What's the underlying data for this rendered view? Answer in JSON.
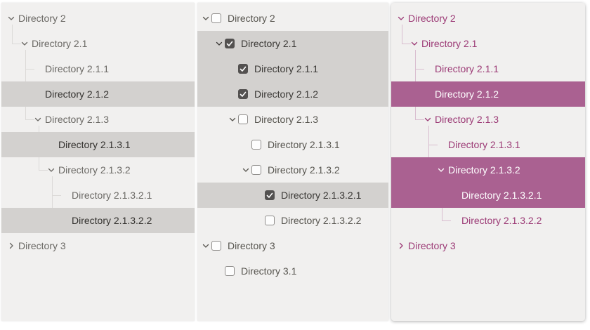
{
  "page": {
    "background": "#ffffff"
  },
  "panels": [
    {
      "name": "tree-basic",
      "show_lines": true,
      "show_checkboxes": false,
      "theme": {
        "panel_bg": "#f1f0ef",
        "text": "#6b6965",
        "selected_text": "#33312e",
        "selected_bg": "#d3d1cf",
        "line": "#dcdad8"
      },
      "nodes": [
        {
          "label": "Directory 2",
          "level": 0,
          "chevron": "down",
          "selected": false
        },
        {
          "label": "Directory 2.1",
          "level": 1,
          "chevron": "down",
          "selected": false
        },
        {
          "label": "Directory 2.1.1",
          "level": 2,
          "chevron": "none",
          "selected": false
        },
        {
          "label": "Directory 2.1.2",
          "level": 2,
          "chevron": "none",
          "selected": true
        },
        {
          "label": "Directory 2.1.3",
          "level": 2,
          "chevron": "down",
          "selected": false
        },
        {
          "label": "Directory 2.1.3.1",
          "level": 3,
          "chevron": "none",
          "selected": true
        },
        {
          "label": "Directory 2.1.3.2",
          "level": 3,
          "chevron": "down",
          "selected": false
        },
        {
          "label": "Directory 2.1.3.2.1",
          "level": 4,
          "chevron": "none",
          "selected": false
        },
        {
          "label": "Directory 2.1.3.2.2",
          "level": 4,
          "chevron": "none",
          "selected": true
        },
        {
          "label": "Directory 3",
          "level": 0,
          "chevron": "right",
          "selected": false
        }
      ]
    },
    {
      "name": "tree-checkbox",
      "show_lines": false,
      "show_checkboxes": true,
      "theme": {
        "panel_bg": "#f1f0ef",
        "text": "#57554f",
        "selected_text": "#3a3835",
        "selected_bg": "#d3d1cf",
        "line": "#dcdad8",
        "checkbox_border": "#8f8d8b",
        "checkbox_checked_bg": "#535150",
        "checkbox_check": "#ffffff"
      },
      "nodes": [
        {
          "label": "Directory 2",
          "level": 0,
          "chevron": "down",
          "selected": false,
          "checked": false
        },
        {
          "label": "Directory 2.1",
          "level": 1,
          "chevron": "down",
          "selected": true,
          "checked": true
        },
        {
          "label": "Directory 2.1.1",
          "level": 2,
          "chevron": "none",
          "selected": true,
          "checked": true
        },
        {
          "label": "Directory 2.1.2",
          "level": 2,
          "chevron": "none",
          "selected": true,
          "checked": true
        },
        {
          "label": "Directory 2.1.3",
          "level": 2,
          "chevron": "down",
          "selected": false,
          "checked": false
        },
        {
          "label": "Directory 2.1.3.1",
          "level": 3,
          "chevron": "none",
          "selected": false,
          "checked": false
        },
        {
          "label": "Directory 2.1.3.2",
          "level": 3,
          "chevron": "down",
          "selected": false,
          "checked": false
        },
        {
          "label": "Directory 2.1.3.2.1",
          "level": 4,
          "chevron": "none",
          "selected": true,
          "checked": true
        },
        {
          "label": "Directory 2.1.3.2.2",
          "level": 4,
          "chevron": "none",
          "selected": false,
          "checked": false
        },
        {
          "label": "Directory 3",
          "level": 0,
          "chevron": "down",
          "selected": false,
          "checked": false
        },
        {
          "label": "Directory 3.1",
          "level": 1,
          "chevron": "none",
          "selected": false,
          "checked": false
        }
      ]
    },
    {
      "name": "tree-themed",
      "show_lines": true,
      "show_checkboxes": false,
      "theme": {
        "panel_bg": "#f1f0ef",
        "text": "#9c3b76",
        "selected_text": "#ffffff",
        "selected_bg": "#aa6191",
        "line": "#d9bdcf"
      },
      "nodes": [
        {
          "label": "Directory 2",
          "level": 0,
          "chevron": "down",
          "selected": false
        },
        {
          "label": "Directory 2.1",
          "level": 1,
          "chevron": "down",
          "selected": false
        },
        {
          "label": "Directory 2.1.1",
          "level": 2,
          "chevron": "none",
          "selected": false
        },
        {
          "label": "Directory 2.1.2",
          "level": 2,
          "chevron": "none",
          "selected": true
        },
        {
          "label": "Directory 2.1.3",
          "level": 2,
          "chevron": "down",
          "selected": false
        },
        {
          "label": "Directory 2.1.3.1",
          "level": 3,
          "chevron": "none",
          "selected": false
        },
        {
          "label": "Directory 2.1.3.2",
          "level": 3,
          "chevron": "down",
          "selected": true
        },
        {
          "label": "Directory 2.1.3.2.1",
          "level": 4,
          "chevron": "none",
          "selected": true
        },
        {
          "label": "Directory 2.1.3.2.2",
          "level": 4,
          "chevron": "none",
          "selected": false
        },
        {
          "label": "Directory 3",
          "level": 0,
          "chevron": "right",
          "selected": false
        }
      ]
    }
  ]
}
